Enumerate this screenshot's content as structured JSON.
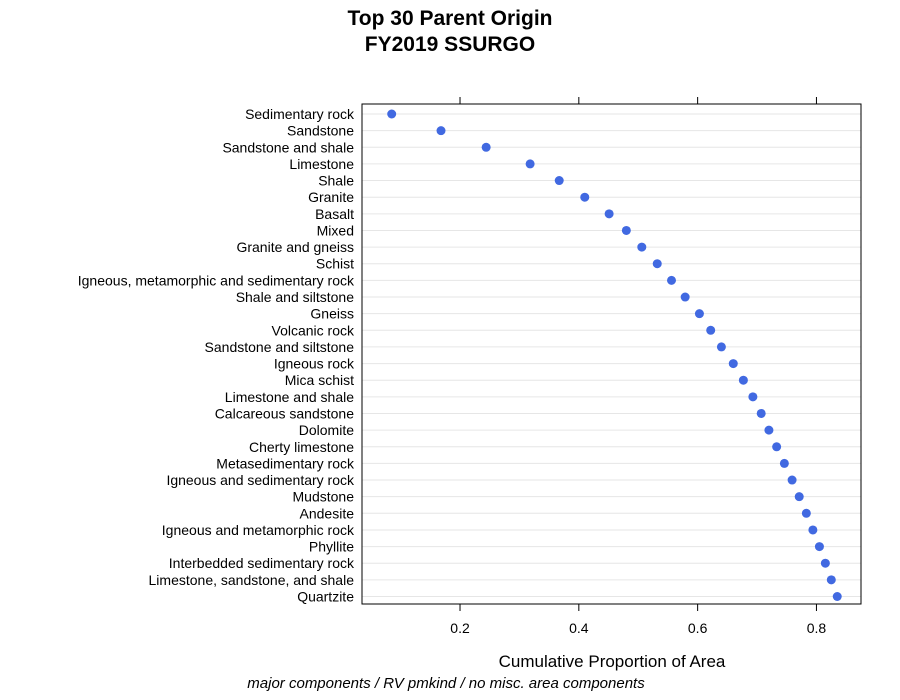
{
  "title": "Top 30 Parent Origin",
  "subtitle": "FY2019 SSURGO",
  "footnote": "major components / RV pmkind / no misc. area components",
  "colors": {
    "point": "#4169E1",
    "grid": "#e6e6e6",
    "frame": "#000000"
  },
  "chart_data": {
    "type": "scatter",
    "title": "Top 30 Parent Origin",
    "subtitle": "FY2019 SSURGO",
    "xlabel": "Cumulative Proportion of Area",
    "ylabel": "",
    "xlim": [
      0.035,
      0.875
    ],
    "xticks": [
      0.2,
      0.4,
      0.6,
      0.8
    ],
    "xtick_labels": [
      "0.2",
      "0.4",
      "0.6",
      "0.8"
    ],
    "grid": "horizontal",
    "categories": [
      "Sedimentary rock",
      "Sandstone",
      "Sandstone and shale",
      "Limestone",
      "Shale",
      "Granite",
      "Basalt",
      "Mixed",
      "Granite and gneiss",
      "Schist",
      "Igneous, metamorphic and sedimentary rock",
      "Shale and siltstone",
      "Gneiss",
      "Volcanic rock",
      "Sandstone and siltstone",
      "Igneous rock",
      "Mica schist",
      "Limestone and shale",
      "Calcareous sandstone",
      "Dolomite",
      "Cherty limestone",
      "Metasedimentary rock",
      "Igneous and sedimentary rock",
      "Mudstone",
      "Andesite",
      "Igneous and metamorphic rock",
      "Phyllite",
      "Interbedded sedimentary rock",
      "Limestone, sandstone, and shale",
      "Quartzite"
    ],
    "values": [
      0.085,
      0.168,
      0.244,
      0.318,
      0.367,
      0.41,
      0.451,
      0.48,
      0.506,
      0.532,
      0.556,
      0.579,
      0.603,
      0.622,
      0.64,
      0.66,
      0.677,
      0.693,
      0.707,
      0.72,
      0.733,
      0.746,
      0.759,
      0.771,
      0.783,
      0.794,
      0.805,
      0.815,
      0.825,
      0.835
    ]
  }
}
